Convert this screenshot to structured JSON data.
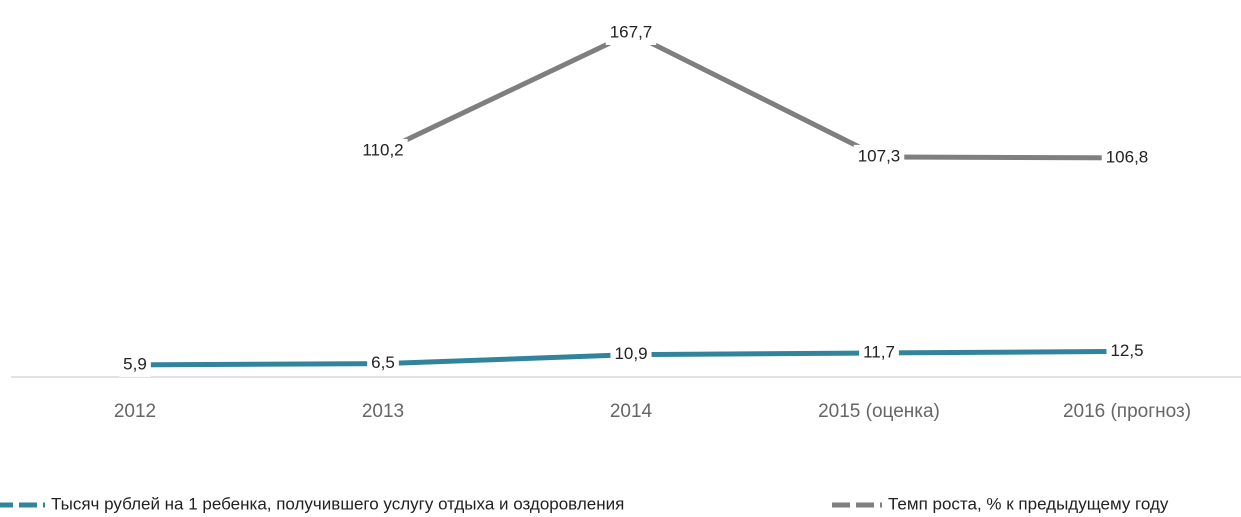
{
  "chart_data": {
    "type": "line",
    "categories": [
      "2012",
      "2013",
      "2014",
      "2015 (оценка)",
      "2016 (прогноз)"
    ],
    "series": [
      {
        "name": "Тысяч рублей на 1 ребенка, получившего услугу отдыха и оздоровления",
        "color": "#31849b",
        "values": [
          5.9,
          6.5,
          10.9,
          11.7,
          12.5
        ],
        "value_labels": [
          "5,9",
          "6,5",
          "10,9",
          "11,7",
          "12,5"
        ]
      },
      {
        "name": "Темп роста, % к предыдущему году",
        "color": "#7f7f7f",
        "values": [
          null,
          110.2,
          167.7,
          107.3,
          106.8
        ],
        "value_labels": [
          null,
          "110,2",
          "167,7",
          "107,3",
          "106,8"
        ]
      }
    ]
  }
}
